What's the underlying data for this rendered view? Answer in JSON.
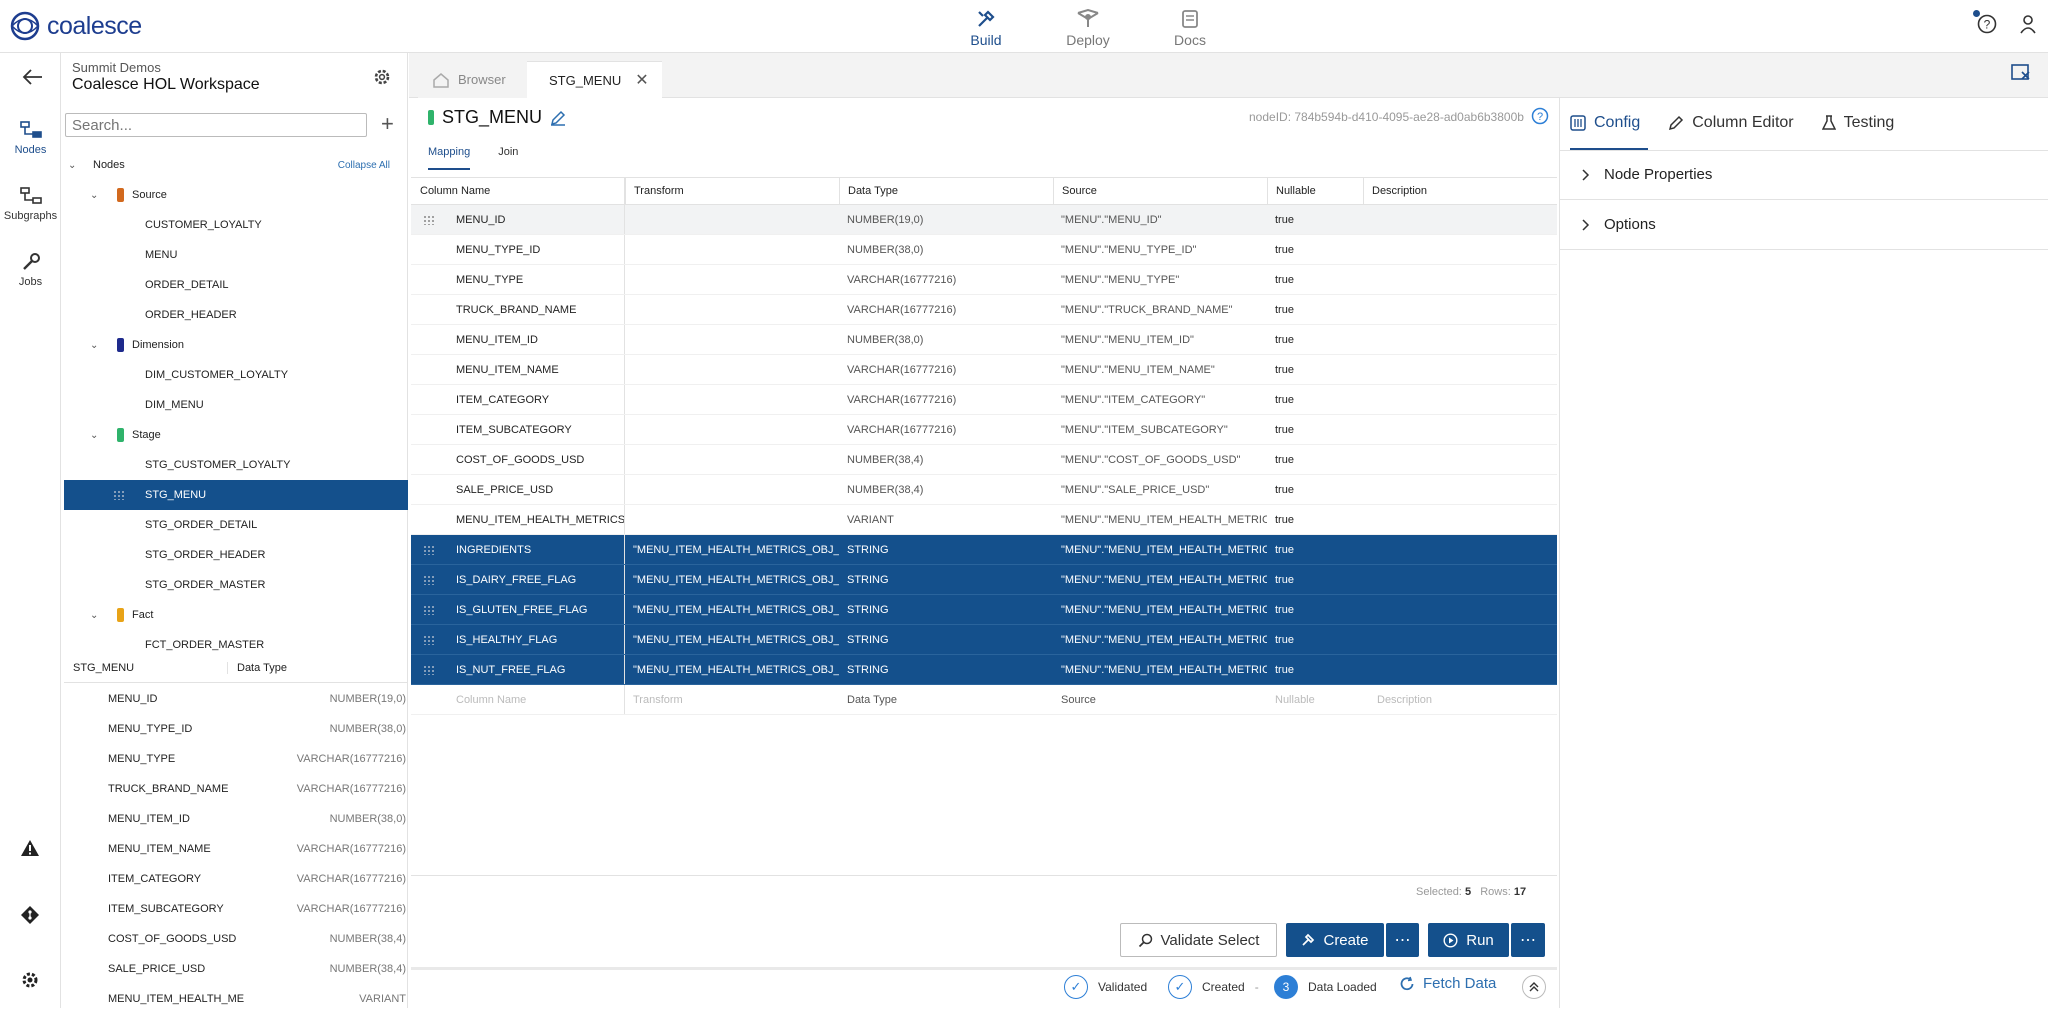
{
  "app": {
    "logo_text": "coalesce"
  },
  "topnav": [
    {
      "label": "Build",
      "icon": "build-icon",
      "active": true
    },
    {
      "label": "Deploy",
      "icon": "deploy-icon",
      "active": false
    },
    {
      "label": "Docs",
      "icon": "docs-icon",
      "active": false
    }
  ],
  "leftrail": [
    {
      "label": "Nodes",
      "icon": "nodes-icon"
    },
    {
      "label": "Subgraphs",
      "icon": "subgraphs-icon"
    },
    {
      "label": "Jobs",
      "icon": "wrench-icon"
    }
  ],
  "workspace": {
    "org": "Summit Demos",
    "name": "Coalesce HOL Workspace"
  },
  "search": {
    "placeholder": "Search..."
  },
  "tree": {
    "root_label": "Nodes",
    "collapse_all": "Collapse All",
    "groups": [
      {
        "label": "Source",
        "color": "#d2691e",
        "items": [
          "CUSTOMER_LOYALTY",
          "MENU",
          "ORDER_DETAIL",
          "ORDER_HEADER"
        ]
      },
      {
        "label": "Dimension",
        "color": "#1e2a8c",
        "items": [
          "DIM_CUSTOMER_LOYALTY",
          "DIM_MENU"
        ]
      },
      {
        "label": "Stage",
        "color": "#2fb36b",
        "items": [
          "STG_CUSTOMER_LOYALTY",
          "STG_MENU",
          "STG_ORDER_DETAIL",
          "STG_ORDER_HEADER",
          "STG_ORDER_MASTER"
        ]
      },
      {
        "label": "Fact",
        "color": "#e8a317",
        "items": [
          "FCT_ORDER_MASTER"
        ]
      }
    ],
    "selected": "STG_MENU"
  },
  "column_panel": {
    "title": "STG_MENU",
    "type_header": "Data Type",
    "rows": [
      {
        "name": "MENU_ID",
        "type": "NUMBER(19,0)"
      },
      {
        "name": "MENU_TYPE_ID",
        "type": "NUMBER(38,0)"
      },
      {
        "name": "MENU_TYPE",
        "type": "VARCHAR(16777216)"
      },
      {
        "name": "TRUCK_BRAND_NAME",
        "type": "VARCHAR(16777216)"
      },
      {
        "name": "MENU_ITEM_ID",
        "type": "NUMBER(38,0)"
      },
      {
        "name": "MENU_ITEM_NAME",
        "type": "VARCHAR(16777216)"
      },
      {
        "name": "ITEM_CATEGORY",
        "type": "VARCHAR(16777216)"
      },
      {
        "name": "ITEM_SUBCATEGORY",
        "type": "VARCHAR(16777216)"
      },
      {
        "name": "COST_OF_GOODS_USD",
        "type": "NUMBER(38,4)"
      },
      {
        "name": "SALE_PRICE_USD",
        "type": "NUMBER(38,4)"
      },
      {
        "name": "MENU_ITEM_HEALTH_ME",
        "type": "VARIANT"
      }
    ]
  },
  "tabs": {
    "browser": "Browser",
    "active": "STG_MENU"
  },
  "node": {
    "title": "STG_MENU",
    "node_id": "nodeID: 784b594b-d410-4095-ae28-ad0ab6b3800b",
    "subtabs": [
      "Mapping",
      "Join"
    ]
  },
  "grid": {
    "headers": [
      "Column Name",
      "Transform",
      "Data Type",
      "Source",
      "Nullable",
      "Description"
    ],
    "rows": [
      {
        "name": "MENU_ID",
        "transform": "",
        "type": "NUMBER(19,0)",
        "source": "\"MENU\".\"MENU_ID\"",
        "nullable": "true",
        "selected": false
      },
      {
        "name": "MENU_TYPE_ID",
        "transform": "",
        "type": "NUMBER(38,0)",
        "source": "\"MENU\".\"MENU_TYPE_ID\"",
        "nullable": "true",
        "selected": false
      },
      {
        "name": "MENU_TYPE",
        "transform": "",
        "type": "VARCHAR(16777216)",
        "source": "\"MENU\".\"MENU_TYPE\"",
        "nullable": "true",
        "selected": false
      },
      {
        "name": "TRUCK_BRAND_NAME",
        "transform": "",
        "type": "VARCHAR(16777216)",
        "source": "\"MENU\".\"TRUCK_BRAND_NAME\"",
        "nullable": "true",
        "selected": false
      },
      {
        "name": "MENU_ITEM_ID",
        "transform": "",
        "type": "NUMBER(38,0)",
        "source": "\"MENU\".\"MENU_ITEM_ID\"",
        "nullable": "true",
        "selected": false
      },
      {
        "name": "MENU_ITEM_NAME",
        "transform": "",
        "type": "VARCHAR(16777216)",
        "source": "\"MENU\".\"MENU_ITEM_NAME\"",
        "nullable": "true",
        "selected": false
      },
      {
        "name": "ITEM_CATEGORY",
        "transform": "",
        "type": "VARCHAR(16777216)",
        "source": "\"MENU\".\"ITEM_CATEGORY\"",
        "nullable": "true",
        "selected": false
      },
      {
        "name": "ITEM_SUBCATEGORY",
        "transform": "",
        "type": "VARCHAR(16777216)",
        "source": "\"MENU\".\"ITEM_SUBCATEGORY\"",
        "nullable": "true",
        "selected": false
      },
      {
        "name": "COST_OF_GOODS_USD",
        "transform": "",
        "type": "NUMBER(38,4)",
        "source": "\"MENU\".\"COST_OF_GOODS_USD\"",
        "nullable": "true",
        "selected": false
      },
      {
        "name": "SALE_PRICE_USD",
        "transform": "",
        "type": "NUMBER(38,4)",
        "source": "\"MENU\".\"SALE_PRICE_USD\"",
        "nullable": "true",
        "selected": false
      },
      {
        "name": "MENU_ITEM_HEALTH_METRICS_OB",
        "transform": "",
        "type": "VARIANT",
        "source": "\"MENU\".\"MENU_ITEM_HEALTH_METRICS_C",
        "nullable": "true",
        "selected": false
      },
      {
        "name": "INGREDIENTS",
        "transform": "\"MENU_ITEM_HEALTH_METRICS_OBJ_me",
        "type": "STRING",
        "source": "\"MENU\".\"MENU_ITEM_HEALTH_METRICS_C",
        "nullable": "true",
        "selected": true
      },
      {
        "name": "IS_DAIRY_FREE_FLAG",
        "transform": "\"MENU_ITEM_HEALTH_METRICS_OBJ_me",
        "type": "STRING",
        "source": "\"MENU\".\"MENU_ITEM_HEALTH_METRICS_C",
        "nullable": "true",
        "selected": true
      },
      {
        "name": "IS_GLUTEN_FREE_FLAG",
        "transform": "\"MENU_ITEM_HEALTH_METRICS_OBJ_me",
        "type": "STRING",
        "source": "\"MENU\".\"MENU_ITEM_HEALTH_METRICS_C",
        "nullable": "true",
        "selected": true
      },
      {
        "name": "IS_HEALTHY_FLAG",
        "transform": "\"MENU_ITEM_HEALTH_METRICS_OBJ_me",
        "type": "STRING",
        "source": "\"MENU\".\"MENU_ITEM_HEALTH_METRICS_C",
        "nullable": "true",
        "selected": true
      },
      {
        "name": "IS_NUT_FREE_FLAG",
        "transform": "\"MENU_ITEM_HEALTH_METRICS_OBJ_me",
        "type": "STRING",
        "source": "\"MENU\".\"MENU_ITEM_HEALTH_METRICS_C",
        "nullable": "true",
        "selected": true
      }
    ],
    "placeholder_row": {
      "name": "Column Name",
      "transform": "Transform",
      "type": "Data Type",
      "source": "Source",
      "nullable": "Nullable",
      "description": "Description"
    },
    "selected_label": "Selected:",
    "selected_value": "5",
    "rows_label": "Rows:",
    "rows_value": "17"
  },
  "actions": {
    "validate": "Validate Select",
    "create": "Create",
    "run": "Run",
    "more": "⋯"
  },
  "status": {
    "validated": "Validated",
    "created": "Created",
    "sep": "-",
    "loaded_count": "3",
    "loaded": "Data Loaded",
    "fetch": "Fetch Data"
  },
  "right_panel": {
    "tabs": [
      "Config",
      "Column Editor",
      "Testing"
    ],
    "sections": [
      "Node Properties",
      "Options"
    ]
  },
  "colors": {
    "accent": "#14508c",
    "link": "#2d7fd6"
  }
}
